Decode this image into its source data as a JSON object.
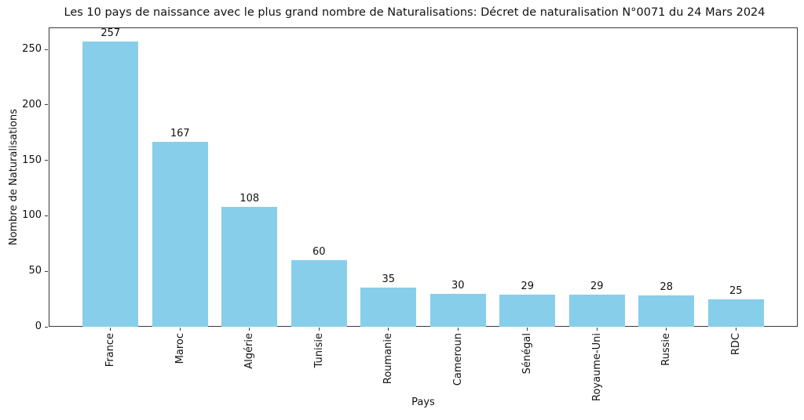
{
  "chart_data": {
    "type": "bar",
    "title": "Les 10 pays de naissance avec le plus grand nombre de Naturalisations: Décret de naturalisation N°0071 du 24 Mars 2024",
    "xlabel": "Pays",
    "ylabel": "Nombre de Naturalisations",
    "categories": [
      "France",
      "Maroc",
      "Algérie",
      "Tunisie",
      "Roumanie",
      "Cameroun",
      "Sénégal",
      "Royaume-Uni",
      "Russie",
      "RDC"
    ],
    "values": [
      257,
      167,
      108,
      60,
      35,
      30,
      29,
      29,
      28,
      25
    ],
    "value_labels": [
      257,
      167,
      108,
      60,
      35,
      30,
      29,
      29,
      28,
      25
    ],
    "yticks": [
      0,
      50,
      100,
      150,
      200,
      250
    ],
    "ylim": [
      0,
      269.85
    ],
    "bar_color": "#87CEEB",
    "grid": false,
    "legend_position": "none"
  }
}
